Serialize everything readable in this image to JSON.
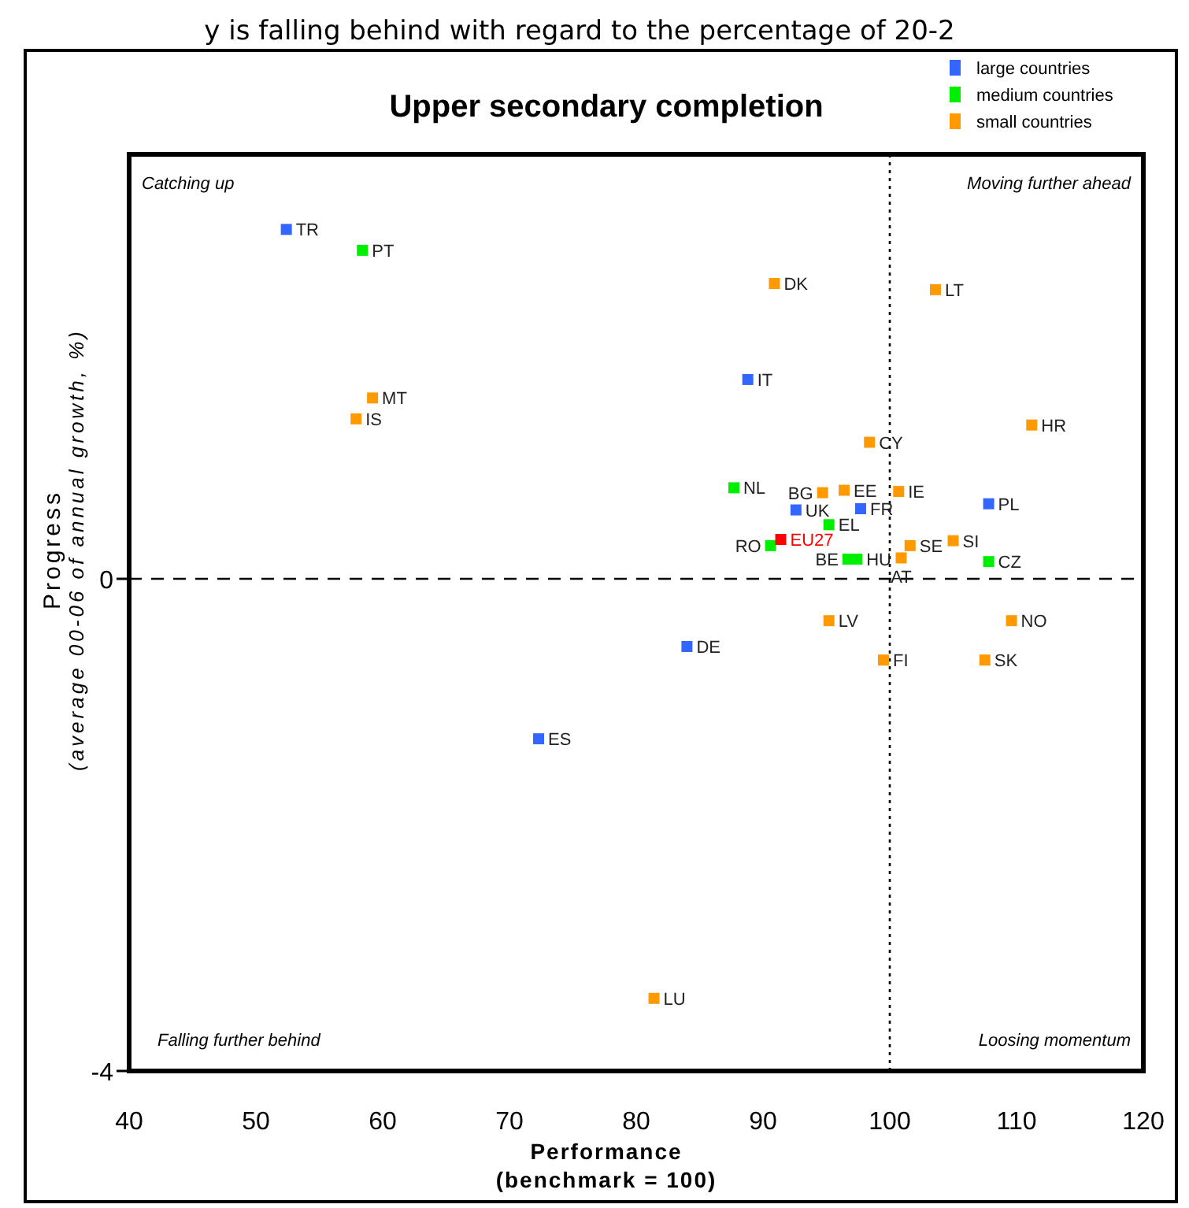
{
  "chart_data": {
    "type": "scatter",
    "title": "Upper secondary completion",
    "xlabel": "Performance\n(benchmark = 100)",
    "ylabel": "Progress\n(average 00-06 of annual growth, %)",
    "xlim": [
      40,
      120
    ],
    "ylim": [
      -4,
      3.45
    ],
    "xticks": [
      40,
      50,
      60,
      70,
      80,
      90,
      100,
      110,
      120
    ],
    "yticks": [
      0,
      -4
    ],
    "grid": false,
    "legend": "top right",
    "marker": "square",
    "ref_lines": [
      {
        "axis": "x",
        "value": 100,
        "line_style": "dotted"
      },
      {
        "axis": "y",
        "value": 0,
        "line_style": "dashed"
      }
    ],
    "series": [
      {
        "name": "large countries",
        "color": "#3366ff",
        "x": [
          52.4,
          88.8,
          107.8,
          92.6,
          97.7,
          84.0,
          72.3
        ],
        "values": [
          2.84,
          1.62,
          0.61,
          0.56,
          0.57,
          -0.55,
          -1.3
        ]
      },
      {
        "name": "medium countries",
        "color": "#00ee00",
        "x": [
          58.4,
          87.7,
          95.2,
          90.6,
          97.4,
          96.7,
          107.8
        ],
        "values": [
          2.67,
          0.74,
          0.44,
          0.27,
          0.16,
          0.16,
          0.14
        ]
      },
      {
        "name": "small countries",
        "color": "#ff9900",
        "x": [
          90.9,
          103.6,
          59.2,
          57.9,
          111.2,
          98.4,
          94.7,
          96.4,
          100.7,
          101.6,
          105.0,
          100.9,
          95.2,
          109.6,
          99.5,
          107.5,
          81.4
        ],
        "values": [
          2.4,
          2.35,
          1.47,
          1.3,
          1.25,
          1.11,
          0.7,
          0.72,
          0.71,
          0.27,
          0.31,
          0.17,
          -0.34,
          -0.34,
          -0.66,
          -0.66,
          -3.41
        ]
      },
      {
        "name": "EU27",
        "color": "#ff0000",
        "x": [
          91.4
        ],
        "values": [
          0.32
        ]
      }
    ],
    "annotations": [
      "y is falling behind with regard to the percentage of 20-2",
      "Catching up",
      "Moving further ahead",
      "Falling further behind",
      "Loosing momentum",
      {
        "text": "TR",
        "x": 52.4,
        "y": 2.84
      },
      {
        "text": "IT",
        "x": 88.8,
        "y": 1.62
      },
      {
        "text": "PL",
        "x": 107.8,
        "y": 0.61
      },
      {
        "text": "UK",
        "x": 92.6,
        "y": 0.56
      },
      {
        "text": "FR",
        "x": 97.7,
        "y": 0.57
      },
      {
        "text": "DE",
        "x": 84.0,
        "y": -0.55
      },
      {
        "text": "ES",
        "x": 72.3,
        "y": -1.3
      },
      {
        "text": "PT",
        "x": 58.4,
        "y": 2.67
      },
      {
        "text": "NL",
        "x": 87.7,
        "y": 0.74
      },
      {
        "text": "EL",
        "x": 95.2,
        "y": 0.44
      },
      {
        "text": "RO",
        "x": 90.6,
        "y": 0.27
      },
      {
        "text": "HU",
        "x": 97.4,
        "y": 0.16
      },
      {
        "text": "BE",
        "x": 96.7,
        "y": 0.16
      },
      {
        "text": "CZ",
        "x": 107.8,
        "y": 0.14
      },
      {
        "text": "DK",
        "x": 90.9,
        "y": 2.4
      },
      {
        "text": "LT",
        "x": 103.6,
        "y": 2.35
      },
      {
        "text": "MT",
        "x": 59.2,
        "y": 1.47
      },
      {
        "text": "IS",
        "x": 57.9,
        "y": 1.3
      },
      {
        "text": "HR",
        "x": 111.2,
        "y": 1.25
      },
      {
        "text": "CY",
        "x": 98.4,
        "y": 1.11
      },
      {
        "text": "BG",
        "x": 94.7,
        "y": 0.7
      },
      {
        "text": "EE",
        "x": 96.4,
        "y": 0.72
      },
      {
        "text": "IE",
        "x": 100.7,
        "y": 0.71
      },
      {
        "text": "SE",
        "x": 101.6,
        "y": 0.27
      },
      {
        "text": "SI",
        "x": 105.0,
        "y": 0.31
      },
      {
        "text": "AT",
        "x": 100.9,
        "y": 0.17
      },
      {
        "text": "LV",
        "x": 95.2,
        "y": -0.34
      },
      {
        "text": "NO",
        "x": 109.6,
        "y": -0.34
      },
      {
        "text": "FI",
        "x": 99.5,
        "y": -0.66
      },
      {
        "text": "SK",
        "x": 107.5,
        "y": -0.66
      },
      {
        "text": "LU",
        "x": 81.4,
        "y": -3.41
      }
    ]
  }
}
